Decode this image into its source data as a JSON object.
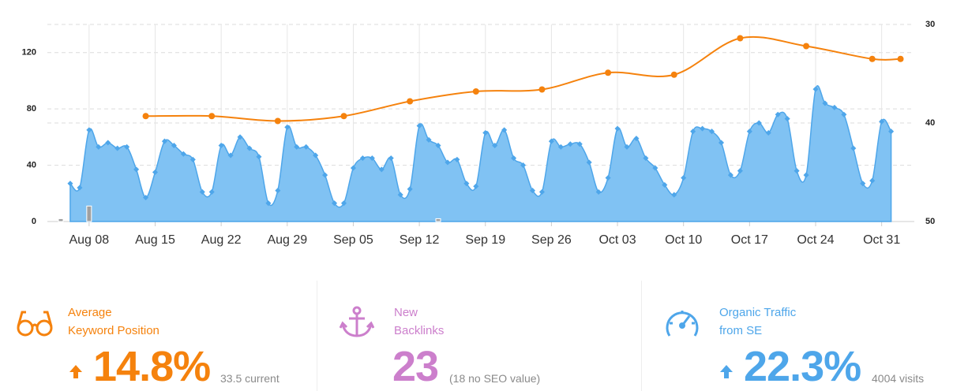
{
  "chart_data": {
    "type": "area",
    "categories": [
      "Aug 05",
      "Aug 06",
      "Aug 07",
      "Aug 08",
      "Aug 09",
      "Aug 10",
      "Aug 11",
      "Aug 12",
      "Aug 13",
      "Aug 14",
      "Aug 15",
      "Aug 16",
      "Aug 17",
      "Aug 18",
      "Aug 19",
      "Aug 20",
      "Aug 21",
      "Aug 22",
      "Aug 23",
      "Aug 24",
      "Aug 25",
      "Aug 26",
      "Aug 27",
      "Aug 28",
      "Aug 29",
      "Aug 30",
      "Aug 31",
      "Sep 01",
      "Sep 02",
      "Sep 03",
      "Sep 04",
      "Sep 05",
      "Sep 06",
      "Sep 07",
      "Sep 08",
      "Sep 09",
      "Sep 10",
      "Sep 11",
      "Sep 12",
      "Sep 13",
      "Sep 14",
      "Sep 15",
      "Sep 16",
      "Sep 17",
      "Sep 18",
      "Sep 19",
      "Sep 20",
      "Sep 21",
      "Sep 22",
      "Sep 23",
      "Sep 24",
      "Sep 25",
      "Sep 26",
      "Sep 27",
      "Sep 28",
      "Sep 29",
      "Sep 30",
      "Oct 01",
      "Oct 02",
      "Oct 03",
      "Oct 04",
      "Oct 05",
      "Oct 06",
      "Oct 07",
      "Oct 08",
      "Oct 09",
      "Oct 10",
      "Oct 11",
      "Oct 12",
      "Oct 13",
      "Oct 14",
      "Oct 15",
      "Oct 16",
      "Oct 17",
      "Oct 18",
      "Oct 19",
      "Oct 20",
      "Oct 21",
      "Oct 22",
      "Oct 23",
      "Oct 24",
      "Oct 25",
      "Oct 26",
      "Oct 27",
      "Oct 28",
      "Oct 29",
      "Oct 30",
      "Oct 31",
      "Nov 01",
      "Nov 02"
    ],
    "xticks": [
      "Aug 08",
      "Aug 15",
      "Aug 22",
      "Aug 29",
      "Sep 05",
      "Sep 12",
      "Sep 19",
      "Sep 26",
      "Oct 03",
      "Oct 10",
      "Oct 17",
      "Oct 24",
      "Oct 31"
    ],
    "ylim": [
      0,
      140
    ],
    "yticks": [
      0,
      40,
      80,
      120
    ],
    "y2lim": [
      50,
      30
    ],
    "y2ticks": [
      50,
      40,
      30
    ],
    "grid": true,
    "series": [
      {
        "type": "area",
        "color": "#4ea6ea",
        "fill": "#80c2f3",
        "values": [
          null,
          27,
          24,
          65,
          53,
          56,
          52,
          53,
          37,
          17,
          35,
          57,
          54,
          48,
          44,
          21,
          21,
          54,
          47,
          60,
          52,
          46,
          13,
          22,
          67,
          53,
          53,
          47,
          33,
          13,
          13,
          38,
          45,
          45,
          37,
          45,
          19,
          23,
          68,
          58,
          54,
          42,
          44,
          27,
          25,
          63,
          54,
          65,
          45,
          40,
          22,
          21,
          57,
          53,
          55,
          55,
          42,
          21,
          31,
          66,
          53,
          59,
          45,
          38,
          26,
          19,
          31,
          64,
          66,
          64,
          56,
          33,
          36,
          64,
          70,
          63,
          76,
          73,
          36,
          33,
          94,
          84,
          81,
          76,
          52,
          27,
          29,
          71,
          64,
          null
        ]
      },
      {
        "type": "line",
        "color": "#f5820d",
        "axis": "y2",
        "x": [
          "Aug 14",
          "Aug 21",
          "Aug 28",
          "Sep 04",
          "Sep 11",
          "Sep 18",
          "Sep 25",
          "Oct 02",
          "Oct 09",
          "Oct 16",
          "Oct 23",
          "Oct 30",
          "Nov 02"
        ],
        "values": [
          39.3,
          39.3,
          39.8,
          39.3,
          37.8,
          36.8,
          36.6,
          34.9,
          35.1,
          31.4,
          32.2,
          33.5,
          33.5
        ]
      },
      {
        "type": "bar",
        "color": "#a0a0a0",
        "x": [
          "Aug 05",
          "Aug 08",
          "Sep 14"
        ],
        "values": [
          2,
          11,
          2
        ]
      }
    ]
  },
  "stats": [
    {
      "color": "#f5820d",
      "title": [
        "Average",
        "Keyword Position"
      ],
      "value": "14.8%",
      "note": "33.5 current",
      "arrow": true
    },
    {
      "color": "#cc7fcc",
      "title": [
        "New",
        "Backlinks"
      ],
      "value": "23",
      "note": "(18 no SEO value)",
      "arrow": false
    },
    {
      "color": "#4ea6ea",
      "title": [
        "Organic Traffic",
        "from SE"
      ],
      "value": "22.3%",
      "note": "4004 visits",
      "arrow": true
    }
  ]
}
